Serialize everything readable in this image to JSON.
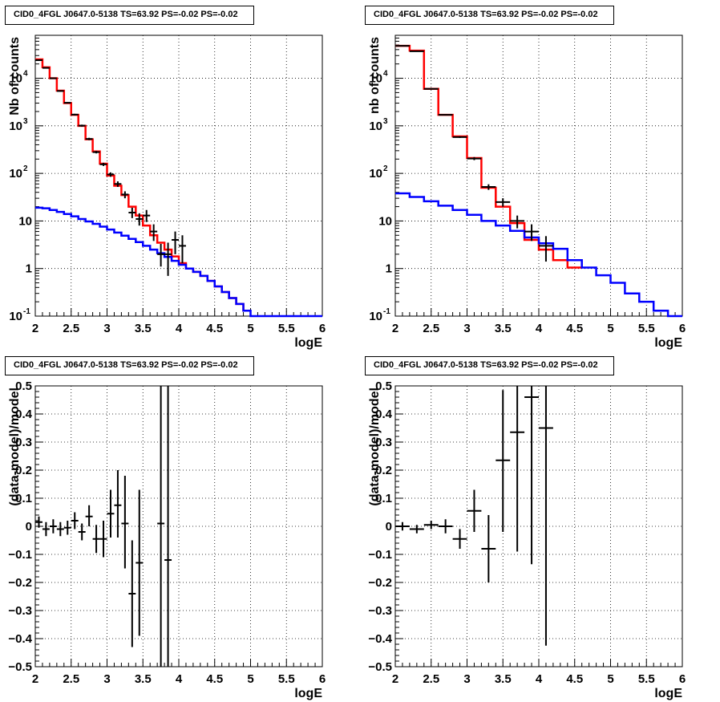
{
  "chart_data": [
    {
      "type": "line",
      "title": "CID0_4FGL J0647.0-5138 TS=63.92 PS=-0.02 PS=-0.02",
      "xlabel": "logE",
      "ylabel": "Nb of counts",
      "xlim": [
        2,
        6
      ],
      "ylim": [
        0.1,
        80000
      ],
      "yscale": "log",
      "grid": true,
      "x_ticks": [
        "2",
        "2.5",
        "3",
        "3.5",
        "4",
        "4.5",
        "5",
        "5.5",
        "6"
      ],
      "y_ticks": [
        "10^-1",
        "1",
        "10",
        "10^2",
        "10^3",
        "10^4"
      ],
      "series": [
        {
          "color": "#ff0000",
          "bin_edges": [
            2,
            2.1,
            2.2,
            2.3,
            2.4,
            2.5,
            2.6,
            2.7,
            2.8,
            2.9,
            3.0,
            3.1,
            3.2,
            3.3,
            3.4,
            3.5,
            3.6,
            3.7,
            3.8,
            3.9,
            4.0,
            4.1,
            4.2,
            4.3,
            4.4,
            4.5,
            4.6,
            4.7,
            4.8,
            4.9,
            5.0
          ],
          "values": [
            25000,
            17000,
            10000,
            5500,
            3000,
            1700,
            1000,
            520,
            290,
            160,
            90,
            55,
            35,
            20,
            13,
            8,
            5,
            3.5,
            2.5,
            1.8,
            1.3,
            1.0,
            0.85,
            0.7,
            0.55,
            0.42,
            0.32,
            0.24,
            0.18,
            0.13
          ]
        },
        {
          "color": "#0000ff",
          "bin_edges": [
            2,
            2.1,
            2.2,
            2.3,
            2.4,
            2.5,
            2.6,
            2.7,
            2.8,
            2.9,
            3.0,
            3.1,
            3.2,
            3.3,
            3.4,
            3.5,
            3.6,
            3.7,
            3.8,
            3.9,
            4.0,
            4.1,
            4.2,
            4.3,
            4.4,
            4.5,
            4.6,
            4.7,
            4.8,
            4.9,
            5.0,
            5.1,
            5.2,
            5.3,
            5.4,
            5.5,
            5.6,
            5.7,
            5.8,
            5.9,
            6.0
          ],
          "values": [
            19,
            18.5,
            17,
            15.5,
            14,
            12.5,
            11,
            9.8,
            8.7,
            7.6,
            6.6,
            5.7,
            4.9,
            4.2,
            3.6,
            3.0,
            2.5,
            2.1,
            1.75,
            1.45,
            1.2,
            1.0,
            0.85,
            0.7,
            0.55,
            0.42,
            0.32,
            0.24,
            0.18,
            0.13,
            0.1,
            0.1,
            0.1,
            0.1,
            0.1,
            0.1,
            0.1,
            0.1,
            0.1,
            0.1
          ]
        }
      ],
      "points": [
        {
          "x": 2.05,
          "y": 24000,
          "xerr": 0.05,
          "ylo": 23700,
          "yhi": 24300
        },
        {
          "x": 2.15,
          "y": 16500,
          "xerr": 0.05,
          "ylo": 16250,
          "yhi": 16750
        },
        {
          "x": 2.25,
          "y": 10000,
          "xerr": 0.05,
          "ylo": 9800,
          "yhi": 10200
        },
        {
          "x": 2.35,
          "y": 5400,
          "xerr": 0.05,
          "ylo": 5250,
          "yhi": 5550
        },
        {
          "x": 2.45,
          "y": 3050,
          "xerr": 0.05,
          "ylo": 2950,
          "yhi": 3150
        },
        {
          "x": 2.55,
          "y": 1720,
          "xerr": 0.05,
          "ylo": 1650,
          "yhi": 1790
        },
        {
          "x": 2.65,
          "y": 1010,
          "xerr": 0.05,
          "ylo": 960,
          "yhi": 1060
        },
        {
          "x": 2.75,
          "y": 530,
          "xerr": 0.05,
          "ylo": 500,
          "yhi": 560
        },
        {
          "x": 2.85,
          "y": 280,
          "xerr": 0.05,
          "ylo": 263,
          "yhi": 297
        },
        {
          "x": 2.95,
          "y": 155,
          "xerr": 0.05,
          "ylo": 143,
          "yhi": 167
        },
        {
          "x": 3.05,
          "y": 95,
          "xerr": 0.05,
          "ylo": 85,
          "yhi": 105
        },
        {
          "x": 3.15,
          "y": 60,
          "xerr": 0.05,
          "ylo": 52,
          "yhi": 68
        },
        {
          "x": 3.25,
          "y": 36,
          "xerr": 0.05,
          "ylo": 30,
          "yhi": 42
        },
        {
          "x": 3.35,
          "y": 15,
          "xerr": 0.05,
          "ylo": 11.5,
          "yhi": 19
        },
        {
          "x": 3.45,
          "y": 11,
          "xerr": 0.05,
          "ylo": 8,
          "yhi": 14.5
        },
        {
          "x": 3.55,
          "y": 13,
          "xerr": 0.05,
          "ylo": 9.5,
          "yhi": 17
        },
        {
          "x": 3.65,
          "y": 6,
          "xerr": 0.05,
          "ylo": 3.8,
          "yhi": 8.5
        },
        {
          "x": 3.75,
          "y": 2,
          "xerr": 0.05,
          "ylo": 1.1,
          "yhi": 3.3
        },
        {
          "x": 3.85,
          "y": 2,
          "xerr": 0.05,
          "ylo": 0.7,
          "yhi": 3.5
        },
        {
          "x": 3.95,
          "y": 4,
          "xerr": 0.05,
          "ylo": 2,
          "yhi": 6
        },
        {
          "x": 4.05,
          "y": 3,
          "xerr": 0.05,
          "ylo": 1.3,
          "yhi": 5
        }
      ]
    },
    {
      "type": "line",
      "title": "CID0_4FGL J0647.0-5138 TS=63.92 PS=-0.02 PS=-0.02",
      "xlabel": "logE",
      "ylabel": "nb of counts",
      "xlim": [
        2,
        6
      ],
      "ylim": [
        0.1,
        80000
      ],
      "yscale": "log",
      "grid": true,
      "x_ticks": [
        "2",
        "2.5",
        "3",
        "3.5",
        "4",
        "4.5",
        "5",
        "5.5",
        "6"
      ],
      "y_ticks": [
        "10^-1",
        "1",
        "10",
        "10^2",
        "10^3",
        "10^4"
      ],
      "series": [
        {
          "color": "#ff0000",
          "bin_edges": [
            2,
            2.2,
            2.4,
            2.6,
            2.8,
            3.0,
            3.2,
            3.4,
            3.6,
            3.8,
            4.0,
            4.2,
            4.4,
            4.6
          ],
          "values": [
            48000,
            38000,
            6000,
            1700,
            600,
            210,
            50,
            20,
            9,
            4,
            2.5,
            1.5,
            1.05
          ]
        },
        {
          "color": "#0000ff",
          "bin_edges": [
            2,
            2.2,
            2.4,
            2.6,
            2.8,
            3.0,
            3.2,
            3.4,
            3.6,
            3.8,
            4.0,
            4.2,
            4.4,
            4.6,
            4.8,
            5.0,
            5.2,
            5.4,
            5.6,
            5.8,
            6.0
          ],
          "values": [
            38,
            32,
            26,
            21,
            17,
            13.5,
            10,
            8,
            6.2,
            4.5,
            3.4,
            2.6,
            1.5,
            1.05,
            0.72,
            0.5,
            0.3,
            0.2,
            0.13,
            0.1
          ]
        }
      ],
      "points": [
        {
          "x": 2.1,
          "y": 48000,
          "xerr": 0.1,
          "ylo": 47500,
          "yhi": 48500
        },
        {
          "x": 2.3,
          "y": 37000,
          "xerr": 0.1,
          "ylo": 36600,
          "yhi": 37400
        },
        {
          "x": 2.5,
          "y": 6000,
          "xerr": 0.1,
          "ylo": 5900,
          "yhi": 6100
        },
        {
          "x": 2.7,
          "y": 1700,
          "xerr": 0.1,
          "ylo": 1650,
          "yhi": 1750
        },
        {
          "x": 2.9,
          "y": 580,
          "xerr": 0.1,
          "ylo": 555,
          "yhi": 605
        },
        {
          "x": 3.1,
          "y": 205,
          "xerr": 0.1,
          "ylo": 190,
          "yhi": 220
        },
        {
          "x": 3.3,
          "y": 52,
          "xerr": 0.1,
          "ylo": 45,
          "yhi": 59
        },
        {
          "x": 3.5,
          "y": 25,
          "xerr": 0.1,
          "ylo": 20,
          "yhi": 30
        },
        {
          "x": 3.7,
          "y": 10,
          "xerr": 0.1,
          "ylo": 7,
          "yhi": 13
        },
        {
          "x": 3.9,
          "y": 6,
          "xerr": 0.1,
          "ylo": 3.8,
          "yhi": 8.5
        },
        {
          "x": 4.1,
          "y": 3,
          "xerr": 0.1,
          "ylo": 1.4,
          "yhi": 4.8
        }
      ]
    },
    {
      "type": "scatter",
      "title": "CID0_4FGL J0647.0-5138 TS=63.92 PS=-0.02 PS=-0.02",
      "xlabel": "logE",
      "ylabel": "(data-model)/model",
      "xlim": [
        2,
        6
      ],
      "ylim": [
        -0.5,
        0.5
      ],
      "grid": true,
      "x_ticks": [
        "2",
        "2.5",
        "3",
        "3.5",
        "4",
        "4.5",
        "5",
        "5.5",
        "6"
      ],
      "y_ticks": [
        "-0.5",
        "-0.4",
        "-0.3",
        "-0.2",
        "-0.1",
        "0",
        "0.1",
        "0.2",
        "0.3",
        "0.4",
        "0.5"
      ],
      "points": [
        {
          "x": 2.05,
          "y": 0.015,
          "xerr": 0.05,
          "ylo": -0.005,
          "yhi": 0.035
        },
        {
          "x": 2.15,
          "y": -0.01,
          "xerr": 0.05,
          "ylo": -0.035,
          "yhi": 0.015
        },
        {
          "x": 2.25,
          "y": 0.0,
          "xerr": 0.05,
          "ylo": -0.025,
          "yhi": 0.025
        },
        {
          "x": 2.35,
          "y": -0.01,
          "xerr": 0.05,
          "ylo": -0.035,
          "yhi": 0.015
        },
        {
          "x": 2.45,
          "y": -0.005,
          "xerr": 0.05,
          "ylo": -0.03,
          "yhi": 0.02
        },
        {
          "x": 2.55,
          "y": 0.02,
          "xerr": 0.05,
          "ylo": -0.01,
          "yhi": 0.05
        },
        {
          "x": 2.65,
          "y": -0.02,
          "xerr": 0.05,
          "ylo": -0.05,
          "yhi": 0.01
        },
        {
          "x": 2.75,
          "y": 0.035,
          "xerr": 0.05,
          "ylo": 0.0,
          "yhi": 0.075
        },
        {
          "x": 2.85,
          "y": -0.045,
          "xerr": 0.05,
          "ylo": -0.095,
          "yhi": 0.005
        },
        {
          "x": 2.95,
          "y": -0.045,
          "xerr": 0.05,
          "ylo": -0.11,
          "yhi": 0.02
        },
        {
          "x": 3.05,
          "y": 0.045,
          "xerr": 0.05,
          "ylo": -0.04,
          "yhi": 0.13
        },
        {
          "x": 3.15,
          "y": 0.075,
          "xerr": 0.05,
          "ylo": -0.04,
          "yhi": 0.2
        },
        {
          "x": 3.25,
          "y": 0.01,
          "xerr": 0.05,
          "ylo": -0.15,
          "yhi": 0.18
        },
        {
          "x": 3.35,
          "y": -0.24,
          "xerr": 0.05,
          "ylo": -0.43,
          "yhi": -0.05
        },
        {
          "x": 3.45,
          "y": -0.13,
          "xerr": 0.05,
          "ylo": -0.39,
          "yhi": 0.13
        },
        {
          "x": 3.75,
          "y": 0.01,
          "xerr": 0.05,
          "ylo": -0.5,
          "yhi": 0.5
        },
        {
          "x": 3.85,
          "y": -0.12,
          "xerr": 0.05,
          "ylo": -0.5,
          "yhi": 0.5
        }
      ]
    },
    {
      "type": "scatter",
      "title": "CID0_4FGL J0647.0-5138 TS=63.92 PS=-0.02 PS=-0.02",
      "xlabel": "logE",
      "ylabel": "(data-model)/model",
      "xlim": [
        2,
        6
      ],
      "ylim": [
        -0.5,
        0.5
      ],
      "grid": true,
      "x_ticks": [
        "2",
        "2.5",
        "3",
        "3.5",
        "4",
        "4.5",
        "5",
        "5.5",
        "6"
      ],
      "y_ticks": [
        "-0.5",
        "-0.4",
        "-0.3",
        "-0.2",
        "-0.1",
        "0",
        "0.1",
        "0.2",
        "0.3",
        "0.4",
        "0.5"
      ],
      "points": [
        {
          "x": 2.1,
          "y": 0.0,
          "xerr": 0.1,
          "ylo": -0.015,
          "yhi": 0.015
        },
        {
          "x": 2.3,
          "y": -0.01,
          "xerr": 0.1,
          "ylo": -0.025,
          "yhi": 0.005
        },
        {
          "x": 2.5,
          "y": 0.005,
          "xerr": 0.1,
          "ylo": -0.01,
          "yhi": 0.02
        },
        {
          "x": 2.7,
          "y": 0.0,
          "xerr": 0.1,
          "ylo": -0.025,
          "yhi": 0.025
        },
        {
          "x": 2.9,
          "y": -0.045,
          "xerr": 0.1,
          "ylo": -0.08,
          "yhi": -0.01
        },
        {
          "x": 3.1,
          "y": 0.055,
          "xerr": 0.1,
          "ylo": -0.02,
          "yhi": 0.13
        },
        {
          "x": 3.3,
          "y": -0.08,
          "xerr": 0.1,
          "ylo": -0.2,
          "yhi": 0.04
        },
        {
          "x": 3.5,
          "y": 0.235,
          "xerr": 0.1,
          "ylo": -0.02,
          "yhi": 0.485
        },
        {
          "x": 3.7,
          "y": 0.335,
          "xerr": 0.1,
          "ylo": -0.09,
          "yhi": 0.5
        },
        {
          "x": 3.9,
          "y": 0.46,
          "xerr": 0.1,
          "ylo": -0.135,
          "yhi": 0.5
        },
        {
          "x": 4.1,
          "y": 0.35,
          "xerr": 0.1,
          "ylo": -0.425,
          "yhi": 0.5
        }
      ]
    }
  ]
}
